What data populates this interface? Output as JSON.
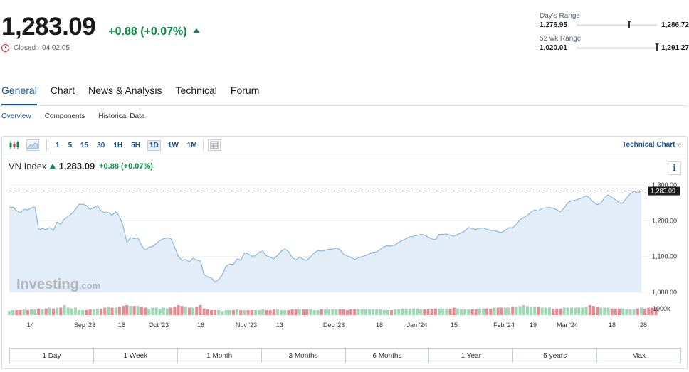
{
  "quote": {
    "price": "1,283.09",
    "change": "+0.88",
    "change_pct": "(+0.07%)",
    "status": "Closed · 04:02:05"
  },
  "ranges": {
    "day": {
      "label": "Day's Range",
      "low": "1,276.95",
      "high": "1,286.72",
      "position": 0.63
    },
    "week52": {
      "label": "52 wk Range",
      "low": "1,020.01",
      "high": "1,291.27",
      "position": 0.97
    }
  },
  "main_tabs": [
    "General",
    "Chart",
    "News & Analysis",
    "Technical",
    "Forum"
  ],
  "sub_tabs": [
    "Overview",
    "Components",
    "Historical Data"
  ],
  "toolbar": {
    "intervals": [
      "1",
      "5",
      "15",
      "30",
      "1H",
      "5H",
      "1D",
      "1W",
      "1M"
    ],
    "active_interval": "1D",
    "technical_link": "Technical Chart",
    "technical_chevron": "»"
  },
  "legend": {
    "name": "VN Index",
    "value": "1,283.09",
    "change": "+0.88 (+0.07%)",
    "info": "i"
  },
  "watermark": {
    "brand": "Investing",
    "suffix": ".com"
  },
  "periods": [
    "1 Day",
    "1 Week",
    "1 Month",
    "3 Months",
    "6 Months",
    "1 Year",
    "5 years",
    "Max"
  ],
  "colors": {
    "accent": "#1256a0",
    "up": "#0e8a47",
    "down": "#d7263d",
    "line": "#7fb0dc",
    "area": "#e3edf7",
    "vol_up": "#9fd6b6",
    "vol_down": "#e58b92"
  },
  "chart_data": {
    "type": "area",
    "last_price_label": "1,283.09",
    "y_ticks": [
      "1,300.00",
      "1,200.00",
      "1,100.00",
      "1,000.00"
    ],
    "ylim": [
      1000,
      1300
    ],
    "volume_label": "1000k",
    "x_ticks": [
      "14",
      "Sep '23",
      "18",
      "Oct '23",
      "16",
      "Nov '23",
      "13",
      "Dec '23",
      "18",
      "Jan '24",
      "15",
      "Feb '24",
      "19",
      "Mar '24",
      "18",
      "28"
    ],
    "series": [
      {
        "values": [
          1237,
          1238,
          1228,
          1223,
          1232,
          1230,
          1236,
          1238,
          1176,
          1178,
          1175,
          1181,
          1173,
          1196,
          1190,
          1204,
          1212,
          1220,
          1232,
          1246,
          1246,
          1243,
          1232,
          1237,
          1242,
          1227,
          1223,
          1223,
          1216,
          1225,
          1212,
          1185,
          1140,
          1153,
          1150,
          1152,
          1131,
          1118,
          1126,
          1128,
          1136,
          1145,
          1150,
          1152,
          1150,
          1127,
          1101,
          1089,
          1092,
          1085,
          1095,
          1090,
          1088,
          1050,
          1043,
          1040,
          1029,
          1036,
          1050,
          1073,
          1079,
          1078,
          1093,
          1090,
          1110,
          1108,
          1101,
          1102,
          1112,
          1115,
          1102,
          1098,
          1094,
          1103,
          1115,
          1121,
          1114,
          1098,
          1090,
          1099,
          1092,
          1089,
          1099,
          1110,
          1117,
          1115,
          1118,
          1120,
          1121,
          1124,
          1119,
          1106,
          1102,
          1098,
          1092,
          1097,
          1099,
          1103,
          1107,
          1112,
          1113,
          1120,
          1128,
          1130,
          1129,
          1133,
          1140,
          1145,
          1150,
          1155,
          1157,
          1159,
          1162,
          1160,
          1154,
          1149,
          1148,
          1162,
          1162,
          1163,
          1160,
          1157,
          1162,
          1166,
          1172,
          1181,
          1178,
          1176,
          1179,
          1180,
          1176,
          1173,
          1173,
          1169,
          1167,
          1174,
          1181,
          1180,
          1190,
          1203,
          1209,
          1215,
          1225,
          1230,
          1227,
          1235,
          1236,
          1237,
          1235,
          1231,
          1225,
          1236,
          1250,
          1256,
          1257,
          1261,
          1264,
          1270,
          1263,
          1252,
          1245,
          1250,
          1265,
          1272,
          1265,
          1258,
          1250,
          1250,
          1263,
          1275,
          1283,
          1278,
          1283
        ]
      },
      {
        "name": "Volume",
        "values": [
          5,
          6,
          6,
          6,
          7,
          6,
          7,
          7,
          8,
          7,
          8,
          9,
          8,
          9,
          9,
          12,
          9,
          8,
          9,
          6,
          6,
          6,
          7,
          7,
          8,
          8,
          9,
          10,
          9,
          9,
          10,
          11,
          12,
          11,
          11,
          11,
          10,
          9,
          8,
          9,
          9,
          8,
          9,
          8,
          9,
          10,
          12,
          11,
          10,
          9,
          9,
          10,
          12,
          8,
          7,
          6,
          6,
          6,
          5,
          6,
          6,
          6,
          7,
          6,
          6,
          6,
          6,
          6,
          6,
          7,
          6,
          6,
          7,
          7,
          6,
          6,
          6,
          7,
          7,
          7,
          7,
          7,
          7,
          6,
          6,
          7,
          7,
          7,
          7,
          7,
          7,
          7,
          6,
          7,
          7,
          7,
          7,
          7,
          7,
          7,
          7,
          7,
          6,
          6,
          6,
          7,
          7,
          8,
          8,
          8,
          8,
          8,
          7,
          7,
          7,
          7,
          8,
          8,
          8,
          8,
          8,
          9,
          8,
          7,
          7,
          7,
          7,
          7,
          8,
          8,
          8,
          8,
          9,
          9,
          9,
          9,
          9,
          10,
          10,
          11,
          12,
          11,
          10,
          10,
          10,
          9,
          9,
          9,
          8,
          8,
          8,
          9,
          9,
          9,
          9,
          9,
          9,
          10,
          12,
          11,
          10,
          9,
          9,
          9,
          8,
          8,
          8,
          8,
          7,
          7,
          7,
          8,
          9,
          8,
          9,
          9,
          9
        ]
      }
    ]
  }
}
